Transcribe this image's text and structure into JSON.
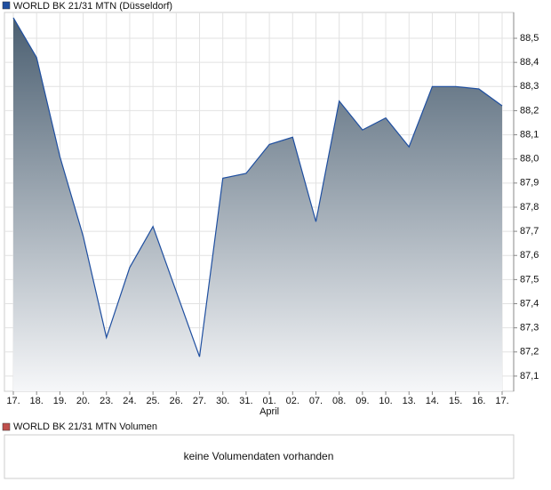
{
  "chart_data": {
    "type": "area",
    "title": "WORLD BK 21/31 MTN (Düsseldorf)",
    "color": "#1f4fa0",
    "categories": [
      "17.",
      "18.",
      "19.",
      "20.",
      "23.",
      "24.",
      "25.",
      "26.",
      "27.",
      "30.",
      "31.",
      "01.",
      "02.",
      "07.",
      "08.",
      "09.",
      "10.",
      "13.",
      "14.",
      "15.",
      "16.",
      "17."
    ],
    "month_labels": [
      null,
      null,
      null,
      null,
      null,
      null,
      null,
      null,
      null,
      null,
      null,
      "April",
      null,
      null,
      null,
      null,
      null,
      null,
      null,
      null,
      null,
      null
    ],
    "values": [
      88.585,
      88.42,
      88.01,
      87.68,
      87.26,
      87.55,
      87.72,
      87.45,
      87.18,
      87.92,
      87.94,
      88.06,
      88.09,
      87.74,
      88.24,
      88.12,
      88.17,
      88.05,
      88.3,
      88.3,
      88.29,
      88.22
    ],
    "ylim": [
      87.037,
      88.607
    ],
    "yticks": [
      {
        "value": 87.1,
        "label": "87,1"
      },
      {
        "value": 87.2,
        "label": "87,2"
      },
      {
        "value": 87.3,
        "label": "87,3"
      },
      {
        "value": 87.4,
        "label": "87,4"
      },
      {
        "value": 87.5,
        "label": "87,5"
      },
      {
        "value": 87.6,
        "label": "87,6"
      },
      {
        "value": 87.7,
        "label": "87,7"
      },
      {
        "value": 87.8,
        "label": "87,8"
      },
      {
        "value": 87.9,
        "label": "87,9"
      },
      {
        "value": 88.0,
        "label": "88,0"
      },
      {
        "value": 88.1,
        "label": "88,1"
      },
      {
        "value": 88.2,
        "label": "88,2"
      },
      {
        "value": 88.3,
        "label": "88,3"
      },
      {
        "value": 88.4,
        "label": "88,4"
      },
      {
        "value": 88.5,
        "label": "88,5"
      }
    ],
    "grid": true
  },
  "volume_panel": {
    "title": "WORLD BK 21/31 MTN Volumen",
    "color": "#c0504d",
    "message": "keine Volumendaten vorhanden"
  }
}
